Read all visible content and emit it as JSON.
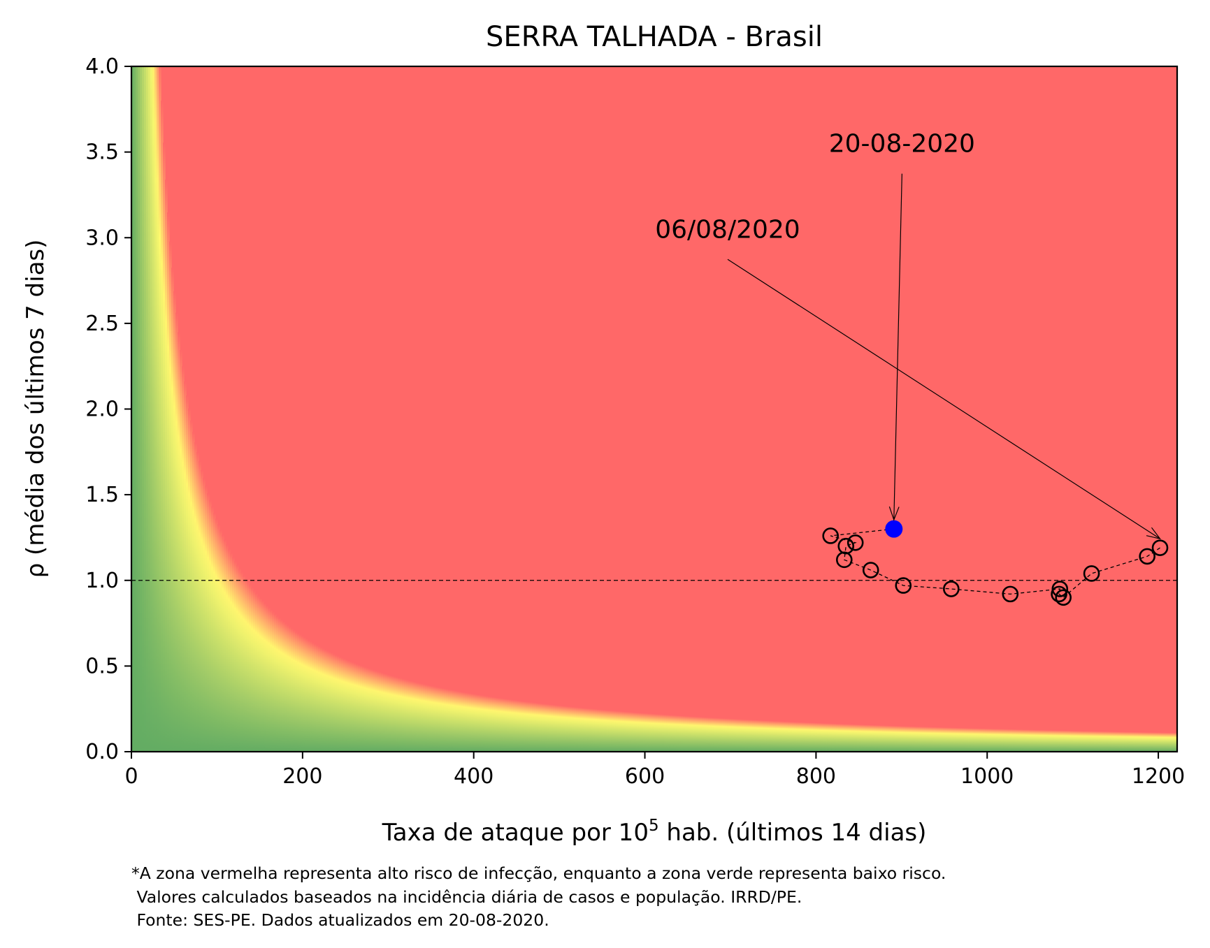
{
  "chart_data": {
    "type": "scatter",
    "title": "SERRA TALHADA - Brasil",
    "xlabel_prefix": "Taxa de ataque por 10",
    "xlabel_sup": "5",
    "xlabel_suffix": " hab. (últimos 14 dias)",
    "ylabel": "ρ (média dos últimos 7 dias)",
    "xlim": [
      0,
      1222
    ],
    "ylim": [
      0,
      4
    ],
    "x_ticks": [
      0,
      200,
      400,
      600,
      800,
      1000,
      1200
    ],
    "y_ticks": [
      0.0,
      0.5,
      1.0,
      1.5,
      2.0,
      2.5,
      3.0,
      3.5,
      4.0
    ],
    "reference_line_y": 1.0,
    "background_colors": {
      "high_risk": "#ff6868",
      "threshold": "#fffa6e",
      "low_risk": "#63ac63"
    },
    "points": [
      {
        "x": 1202,
        "y": 1.19
      },
      {
        "x": 1187,
        "y": 1.14
      },
      {
        "x": 1122,
        "y": 1.04
      },
      {
        "x": 1089,
        "y": 0.9
      },
      {
        "x": 1084,
        "y": 0.92
      },
      {
        "x": 1085,
        "y": 0.95
      },
      {
        "x": 1027,
        "y": 0.92
      },
      {
        "x": 958,
        "y": 0.95
      },
      {
        "x": 902,
        "y": 0.97
      },
      {
        "x": 864,
        "y": 1.06
      },
      {
        "x": 833,
        "y": 1.12
      },
      {
        "x": 835,
        "y": 1.2
      },
      {
        "x": 846,
        "y": 1.22
      },
      {
        "x": 817,
        "y": 1.26
      },
      {
        "x": 891,
        "y": 1.3
      }
    ],
    "current_point_color": "#0000ff",
    "annotations": [
      {
        "text": "06/08/2020",
        "text_x": 612,
        "text_y": 3.0,
        "target_x": 1202,
        "target_y": 1.19
      },
      {
        "text": "20-08-2020",
        "text_x": 815,
        "text_y": 3.5,
        "target_x": 891,
        "target_y": 1.3
      }
    ]
  },
  "notes": [
    "*A zona vermelha representa alto risco de infecção, enquanto a zona verde representa baixo risco.",
    " Valores calculados baseados na incidência diária de casos e população. IRRD/PE.",
    " Fonte: SES-PE. Dados atualizados em 20-08-2020."
  ]
}
